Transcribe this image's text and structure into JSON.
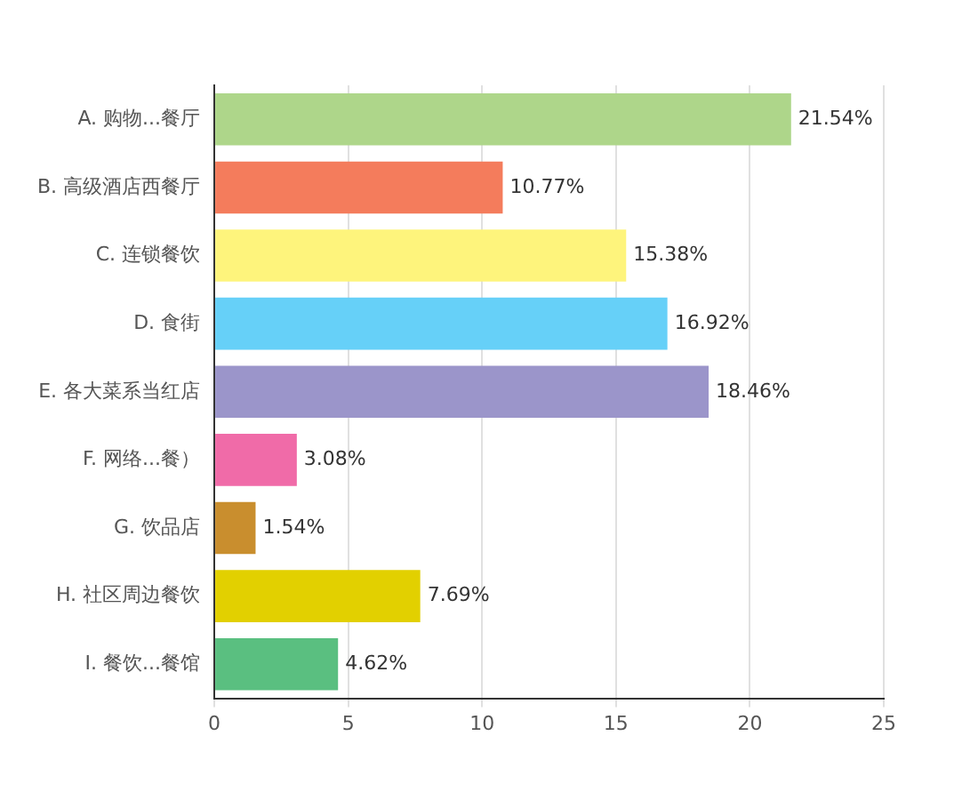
{
  "chart_data": {
    "type": "bar",
    "orientation": "horizontal",
    "categories": [
      "A. 购物...餐厅",
      "B. 高级酒店西餐厅",
      "C. 连锁餐饮",
      "D. 食街",
      "E. 各大菜系当红店",
      "F. 网络...餐）",
      "G. 饮品店",
      "H. 社区周边餐饮",
      "I. 餐饮...餐馆"
    ],
    "values": [
      21.54,
      10.77,
      15.38,
      16.92,
      18.46,
      3.08,
      1.54,
      7.69,
      4.62
    ],
    "colors": [
      "#aed68a",
      "#f47c5c",
      "#fef47c",
      "#66d0f8",
      "#9b95ca",
      "#f06ba8",
      "#c98e2e",
      "#e2d000",
      "#5abf80"
    ],
    "value_labels": [
      "21.54%",
      "10.77%",
      "15.38%",
      "16.92%",
      "18.46%",
      "3.08%",
      "1.54%",
      "7.69%",
      "4.62%"
    ],
    "xlim": [
      0,
      25
    ],
    "xticks": [
      0,
      5,
      10,
      15,
      20,
      25
    ],
    "grid": "x",
    "legend": false
  }
}
